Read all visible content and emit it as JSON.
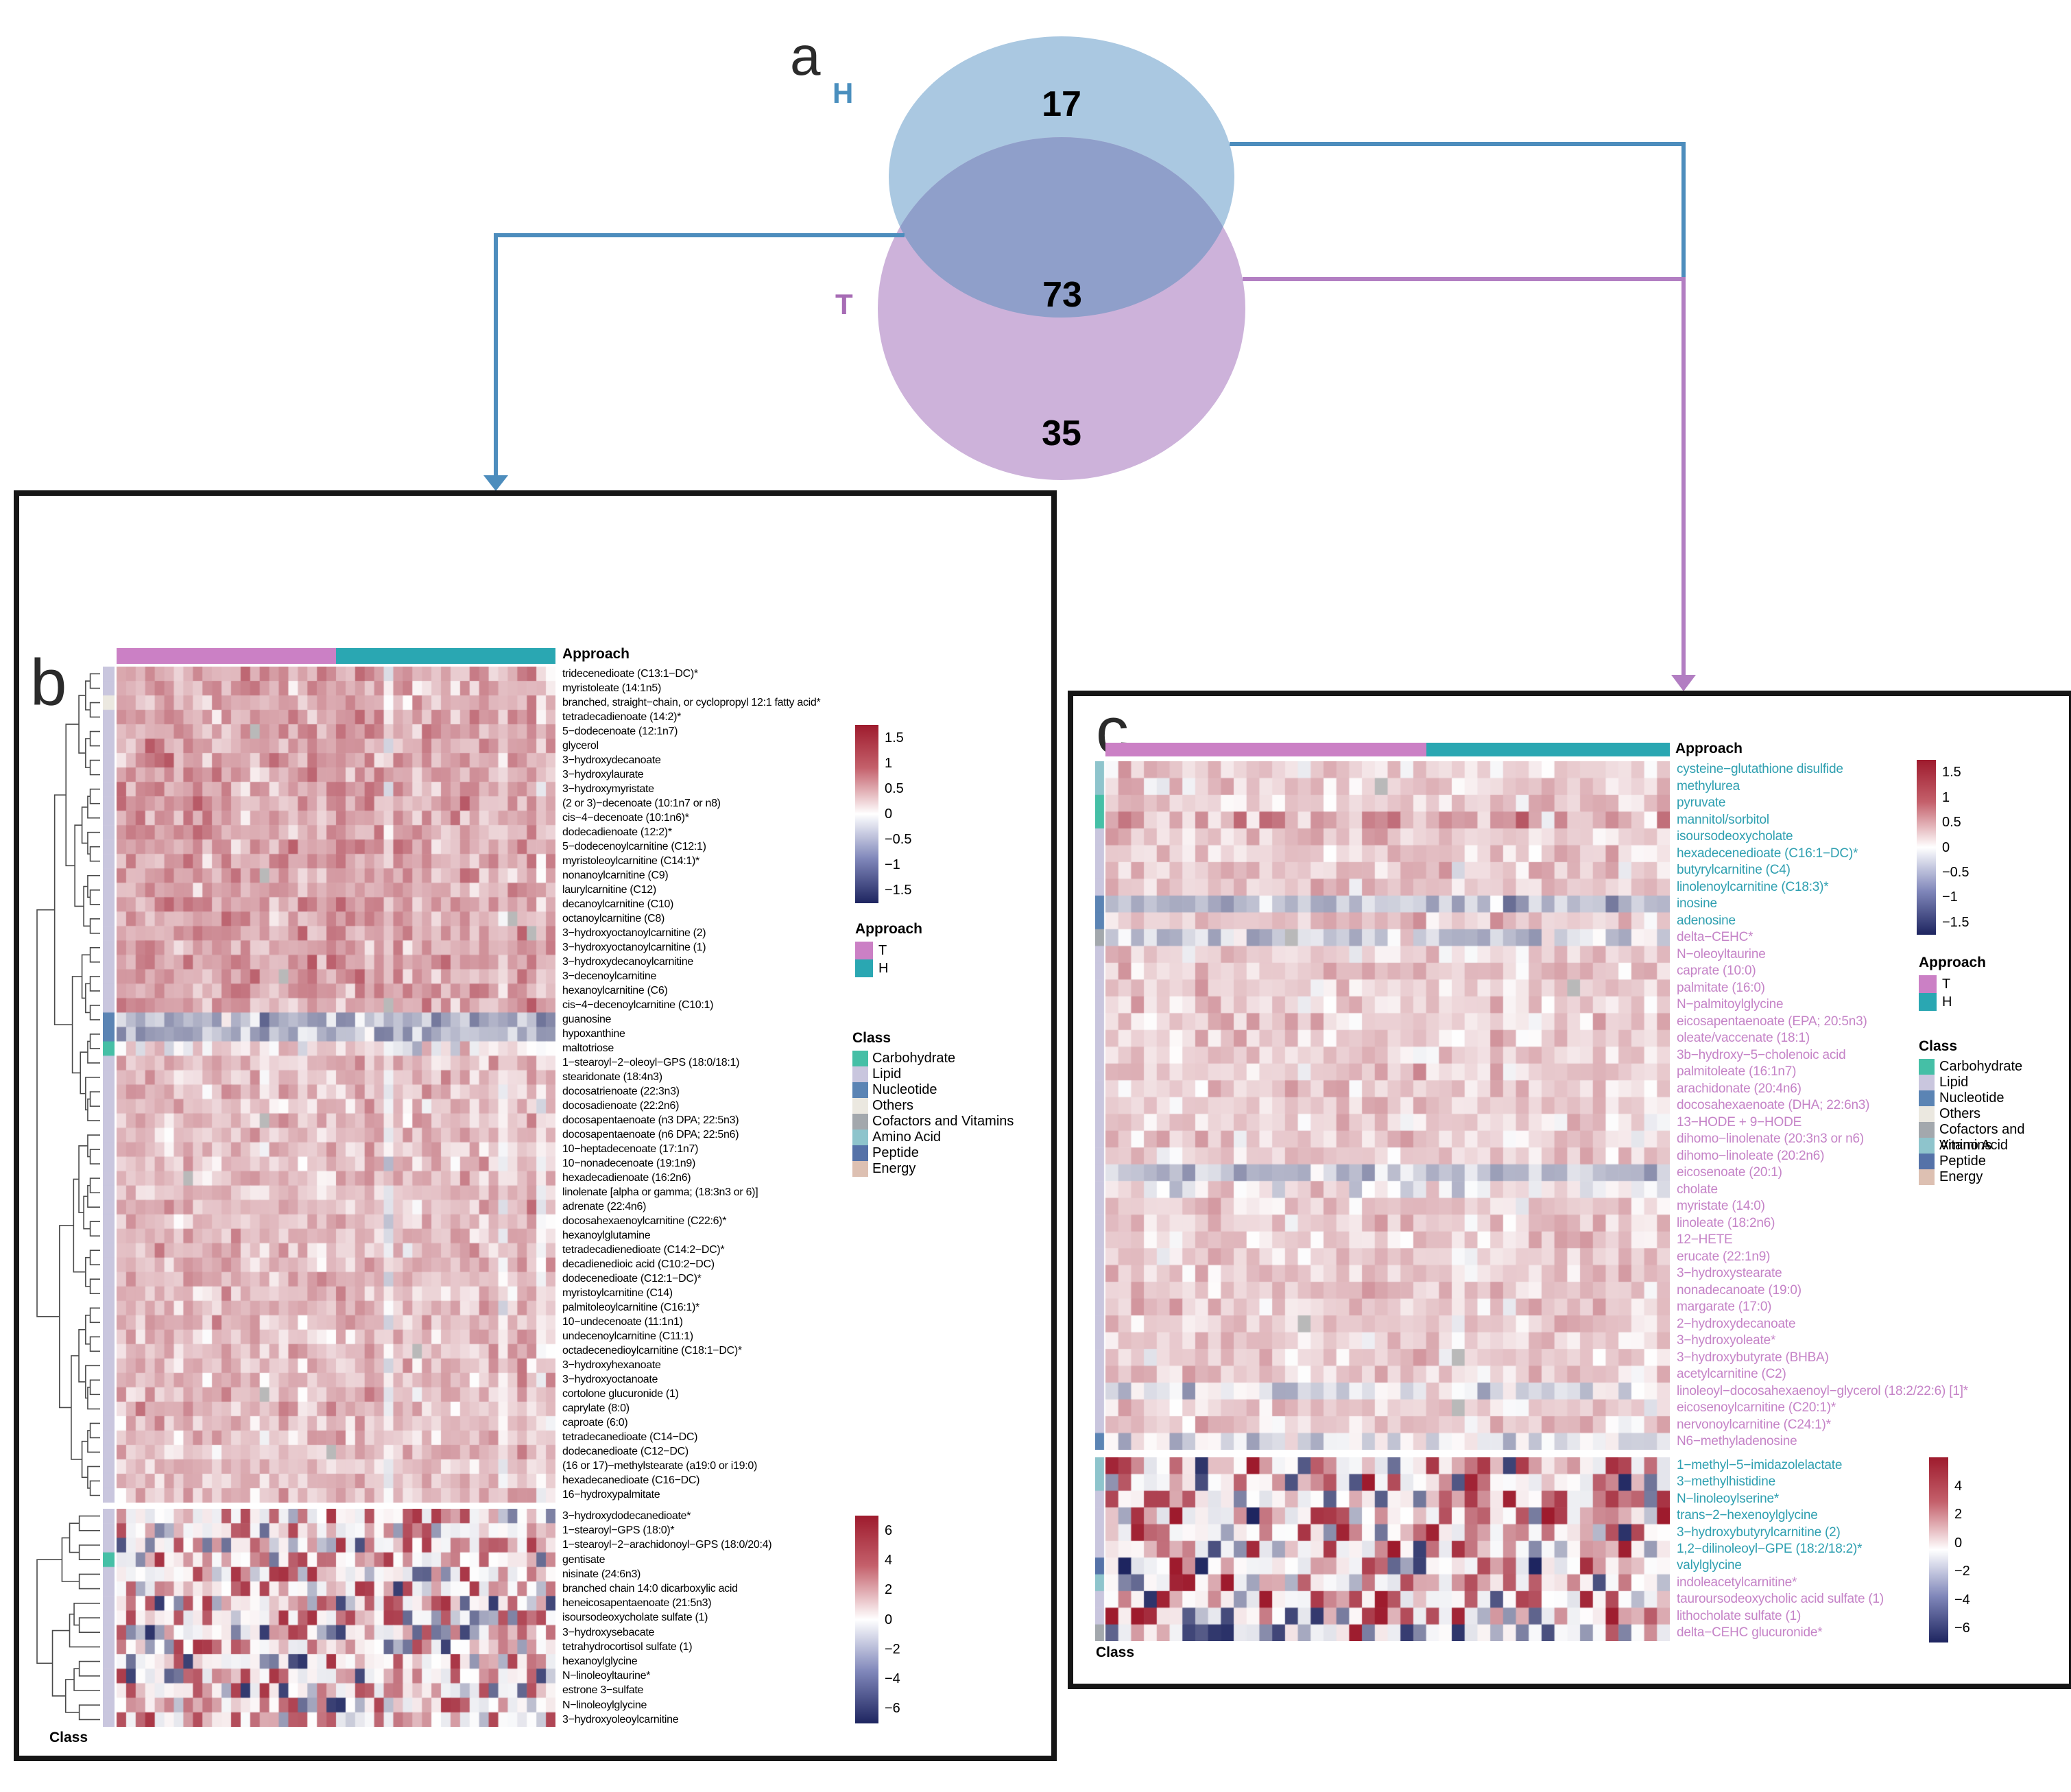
{
  "figure": {
    "panel_a_letter": "a",
    "panel_b_letter": "b",
    "panel_c_letter": "c"
  },
  "panels": {
    "b": {
      "approach_header": "Approach",
      "class_footer": "Class"
    },
    "c": {
      "approach_header": "Approach",
      "class_footer": "Class"
    }
  },
  "approach_legend": {
    "title": "Approach",
    "items": [
      {
        "label": "T",
        "color": "#cb80c5"
      },
      {
        "label": "H",
        "color": "#2aa7b2"
      }
    ]
  },
  "class_legend": {
    "title": "Class",
    "items": [
      {
        "key": "carbohydrate",
        "label": "Carbohydrate",
        "color": "#45bfa6"
      },
      {
        "key": "lipid",
        "label": "Lipid",
        "color": "#c9c6de"
      },
      {
        "key": "nucleotide",
        "label": "Nucleotide",
        "color": "#5b84b4"
      },
      {
        "key": "others",
        "label": "Others",
        "color": "#ebe8e0"
      },
      {
        "key": "cofactors",
        "label": "Cofactors and Vitamins",
        "color": "#a3a8ad"
      },
      {
        "key": "amino",
        "label": "Amino Acid",
        "color": "#8ec4cc"
      },
      {
        "key": "peptide",
        "label": "Peptide",
        "color": "#5572a8"
      },
      {
        "key": "energy",
        "label": "Energy",
        "color": "#ddc0b2"
      }
    ]
  },
  "colors": {
    "venn_h_fill": "#aac8e1",
    "venn_t_fill": "#cdb2da",
    "venn_overlap_fill": "#8f9fca",
    "line_blue": "#4d8dbd",
    "line_purple": "#b27ec2",
    "label_h_teal": "#2e9fb0",
    "label_t_pink": "#c583c7",
    "heat_pos": "#9e1b2d",
    "heat_neg": "#1e2560",
    "heat_na": "#b9b9b9"
  },
  "chart_data": [
    {
      "type": "venn",
      "h_label": "H",
      "t_label": "T",
      "h_only": "17",
      "shared": "73",
      "t_only": "35"
    },
    {
      "type": "heatmap",
      "panel": "b",
      "description": "73 metabolites shared by both approaches; rows clustered, columns split T then H",
      "col_groups": [
        {
          "name": "T",
          "n": 23
        },
        {
          "name": "H",
          "n": 23
        }
      ],
      "colorbar_top": {
        "ticks": [
          {
            "v": 1.5,
            "label": "1.5"
          },
          {
            "v": 1,
            "label": "1"
          },
          {
            "v": 0.5,
            "label": "0.5"
          },
          {
            "v": 0,
            "label": "0"
          },
          {
            "v": -0.5,
            "label": "−0.5"
          },
          {
            "v": -1,
            "label": "−1"
          },
          {
            "v": -1.5,
            "label": "−1.5"
          }
        ],
        "max": 1.75,
        "min": -1.75
      },
      "colorbar_bottom": {
        "ticks": [
          {
            "v": 6,
            "label": "6"
          },
          {
            "v": 4,
            "label": "4"
          },
          {
            "v": 2,
            "label": "2"
          },
          {
            "v": 0,
            "label": "0"
          },
          {
            "v": -2,
            "label": "−2"
          },
          {
            "v": -4,
            "label": "−4"
          },
          {
            "v": -6,
            "label": "−6"
          }
        ],
        "max": 7,
        "min": -7
      },
      "rows_block1": [
        {
          "label": "tridecenedioate (C13:1−DC)*",
          "class": "lipid"
        },
        {
          "label": "myristoleate (14:1n5)",
          "class": "lipid"
        },
        {
          "label": "branched, straight−chain, or cyclopropyl 12:1 fatty acid*",
          "class": "others"
        },
        {
          "label": "tetradecadienoate (14:2)*",
          "class": "lipid"
        },
        {
          "label": "5−dodecenoate (12:1n7)",
          "class": "lipid"
        },
        {
          "label": "glycerol",
          "class": "lipid"
        },
        {
          "label": "3−hydroxydecanoate",
          "class": "lipid"
        },
        {
          "label": "3−hydroxylaurate",
          "class": "lipid"
        },
        {
          "label": "3−hydroxymyristate",
          "class": "lipid"
        },
        {
          "label": "(2 or 3)−decenoate (10:1n7 or n8)",
          "class": "lipid"
        },
        {
          "label": "cis−4−decenoate (10:1n6)*",
          "class": "lipid"
        },
        {
          "label": "dodecadienoate (12:2)*",
          "class": "lipid"
        },
        {
          "label": "5−dodecenoylcarnitine (C12:1)",
          "class": "lipid"
        },
        {
          "label": "myristoleoylcarnitine (C14:1)*",
          "class": "lipid"
        },
        {
          "label": "nonanoylcarnitine (C9)",
          "class": "lipid"
        },
        {
          "label": "laurylcarnitine (C12)",
          "class": "lipid"
        },
        {
          "label": "decanoylcarnitine (C10)",
          "class": "lipid"
        },
        {
          "label": "octanoylcarnitine (C8)",
          "class": "lipid"
        },
        {
          "label": "3−hydroxyoctanoylcarnitine (2)",
          "class": "lipid"
        },
        {
          "label": "3−hydroxyoctanoylcarnitine (1)",
          "class": "lipid"
        },
        {
          "label": "3−hydroxydecanoylcarnitine",
          "class": "lipid"
        },
        {
          "label": "3−decenoylcarnitine",
          "class": "lipid"
        },
        {
          "label": "hexanoylcarnitine (C6)",
          "class": "lipid"
        },
        {
          "label": "cis−4−decenoylcarnitine (C10:1)",
          "class": "lipid"
        },
        {
          "label": "guanosine",
          "class": "nucleotide"
        },
        {
          "label": "hypoxanthine",
          "class": "nucleotide"
        },
        {
          "label": "maltotriose",
          "class": "carbohydrate"
        },
        {
          "label": "1−stearoyl−2−oleoyl−GPS (18:0/18:1)",
          "class": "lipid"
        },
        {
          "label": "stearidonate (18:4n3)",
          "class": "lipid"
        },
        {
          "label": "docosatrienoate (22:3n3)",
          "class": "lipid"
        },
        {
          "label": "docosadienoate (22:2n6)",
          "class": "lipid"
        },
        {
          "label": "docosapentaenoate (n3 DPA; 22:5n3)",
          "class": "lipid"
        },
        {
          "label": "docosapentaenoate (n6 DPA; 22:5n6)",
          "class": "lipid"
        },
        {
          "label": "10−heptadecenoate (17:1n7)",
          "class": "lipid"
        },
        {
          "label": "10−nonadecenoate (19:1n9)",
          "class": "lipid"
        },
        {
          "label": "hexadecadienoate (16:2n6)",
          "class": "lipid"
        },
        {
          "label": "linolenate [alpha or gamma; (18:3n3 or 6)]",
          "class": "lipid"
        },
        {
          "label": "adrenate (22:4n6)",
          "class": "lipid"
        },
        {
          "label": "docosahexaenoylcarnitine (C22:6)*",
          "class": "lipid"
        },
        {
          "label": "hexanoylglutamine",
          "class": "lipid"
        },
        {
          "label": "tetradecadienedioate (C14:2−DC)*",
          "class": "lipid"
        },
        {
          "label": "decadienedioic acid (C10:2−DC)",
          "class": "lipid"
        },
        {
          "label": "dodecenedioate (C12:1−DC)*",
          "class": "lipid"
        },
        {
          "label": "myristoylcarnitine (C14)",
          "class": "lipid"
        },
        {
          "label": "palmitoleoylcarnitine (C16:1)*",
          "class": "lipid"
        },
        {
          "label": "10−undecenoate (11:1n1)",
          "class": "lipid"
        },
        {
          "label": "undecenoylcarnitine (C11:1)",
          "class": "lipid"
        },
        {
          "label": "octadecenedioylcarnitine (C18:1−DC)*",
          "class": "lipid"
        },
        {
          "label": "3−hydroxyhexanoate",
          "class": "lipid"
        },
        {
          "label": "3−hydroxyoctanoate",
          "class": "lipid"
        },
        {
          "label": "cortolone glucuronide (1)",
          "class": "lipid"
        },
        {
          "label": "caprylate (8:0)",
          "class": "lipid"
        },
        {
          "label": "caproate (6:0)",
          "class": "lipid"
        },
        {
          "label": "tetradecanedioate (C14−DC)",
          "class": "lipid"
        },
        {
          "label": "dodecanedioate (C12−DC)",
          "class": "lipid"
        },
        {
          "label": "(16 or 17)−methylstearate (a19:0 or i19:0)",
          "class": "lipid"
        },
        {
          "label": "hexadecanedioate (C16−DC)",
          "class": "lipid"
        },
        {
          "label": "16−hydroxypalmitate",
          "class": "lipid"
        }
      ],
      "rows_block2": [
        {
          "label": "3−hydroxydodecanedioate*",
          "class": "lipid"
        },
        {
          "label": "1−stearoyl−GPS (18:0)*",
          "class": "lipid"
        },
        {
          "label": "1−stearoyl−2−arachidonoyl−GPS (18:0/20:4)",
          "class": "lipid"
        },
        {
          "label": "gentisate",
          "class": "carbohydrate"
        },
        {
          "label": "nisinate (24:6n3)",
          "class": "lipid"
        },
        {
          "label": "branched chain 14:0 dicarboxylic acid",
          "class": "lipid"
        },
        {
          "label": "heneicosapentaenoate (21:5n3)",
          "class": "lipid"
        },
        {
          "label": "isoursodeoxycholate sulfate (1)",
          "class": "lipid"
        },
        {
          "label": "3−hydroxysebacate",
          "class": "lipid"
        },
        {
          "label": "tetrahydrocortisol sulfate (1)",
          "class": "lipid"
        },
        {
          "label": "hexanoylglycine",
          "class": "lipid"
        },
        {
          "label": "N−linoleoyltaurine*",
          "class": "lipid"
        },
        {
          "label": "estrone 3−sulfate",
          "class": "lipid"
        },
        {
          "label": "N−linoleoylglycine",
          "class": "lipid"
        },
        {
          "label": "3−hydroxyoleoylcarnitine",
          "class": "lipid"
        }
      ]
    },
    {
      "type": "heatmap",
      "panel": "c",
      "description": "52 approach-unique metabolites; label color = approach that detected them (teal H, pink T)",
      "col_groups": [
        {
          "name": "T",
          "n": 25
        },
        {
          "name": "H",
          "n": 19
        }
      ],
      "colorbar_top": {
        "ticks": [
          {
            "v": 1.5,
            "label": "1.5"
          },
          {
            "v": 1,
            "label": "1"
          },
          {
            "v": 0.5,
            "label": "0.5"
          },
          {
            "v": 0,
            "label": "0"
          },
          {
            "v": -0.5,
            "label": "−0.5"
          },
          {
            "v": -1,
            "label": "−1"
          },
          {
            "v": -1.5,
            "label": "−1.5"
          }
        ],
        "max": 1.75,
        "min": -1.75
      },
      "colorbar_bottom": {
        "ticks": [
          {
            "v": 4,
            "label": "4"
          },
          {
            "v": 2,
            "label": "2"
          },
          {
            "v": 0,
            "label": "0"
          },
          {
            "v": -2,
            "label": "−2"
          },
          {
            "v": -4,
            "label": "−4"
          },
          {
            "v": -6,
            "label": "−6"
          }
        ],
        "max": 6,
        "min": -7
      },
      "rows_block1": [
        {
          "label": "cysteine−glutathione disulfide",
          "class": "amino",
          "approach": "H"
        },
        {
          "label": "methylurea",
          "class": "amino",
          "approach": "H"
        },
        {
          "label": "pyruvate",
          "class": "carbohydrate",
          "approach": "H"
        },
        {
          "label": "mannitol/sorbitol",
          "class": "carbohydrate",
          "approach": "H"
        },
        {
          "label": "isoursodeoxycholate",
          "class": "lipid",
          "approach": "H"
        },
        {
          "label": "hexadecenedioate (C16:1−DC)*",
          "class": "lipid",
          "approach": "H"
        },
        {
          "label": "butyrylcarnitine (C4)",
          "class": "lipid",
          "approach": "H"
        },
        {
          "label": "linolenoylcarnitine (C18:3)*",
          "class": "lipid",
          "approach": "H"
        },
        {
          "label": "inosine",
          "class": "nucleotide",
          "approach": "H"
        },
        {
          "label": "adenosine",
          "class": "nucleotide",
          "approach": "H"
        },
        {
          "label": "delta−CEHC*",
          "class": "cofactors",
          "approach": "T"
        },
        {
          "label": "N−oleoyltaurine",
          "class": "lipid",
          "approach": "T"
        },
        {
          "label": "caprate (10:0)",
          "class": "lipid",
          "approach": "T"
        },
        {
          "label": "palmitate (16:0)",
          "class": "lipid",
          "approach": "T"
        },
        {
          "label": "N−palmitoylglycine",
          "class": "lipid",
          "approach": "T"
        },
        {
          "label": "eicosapentaenoate (EPA; 20:5n3)",
          "class": "lipid",
          "approach": "T"
        },
        {
          "label": "oleate/vaccenate (18:1)",
          "class": "lipid",
          "approach": "T"
        },
        {
          "label": "3b−hydroxy−5−cholenoic acid",
          "class": "lipid",
          "approach": "T"
        },
        {
          "label": "palmitoleate (16:1n7)",
          "class": "lipid",
          "approach": "T"
        },
        {
          "label": "arachidonate (20:4n6)",
          "class": "lipid",
          "approach": "T"
        },
        {
          "label": "docosahexaenoate (DHA; 22:6n3)",
          "class": "lipid",
          "approach": "T"
        },
        {
          "label": "13−HODE + 9−HODE",
          "class": "lipid",
          "approach": "T"
        },
        {
          "label": "dihomo−linolenate (20:3n3 or n6)",
          "class": "lipid",
          "approach": "T"
        },
        {
          "label": "dihomo−linoleate (20:2n6)",
          "class": "lipid",
          "approach": "T"
        },
        {
          "label": "eicosenoate (20:1)",
          "class": "lipid",
          "approach": "T"
        },
        {
          "label": "cholate",
          "class": "lipid",
          "approach": "T"
        },
        {
          "label": "myristate (14:0)",
          "class": "lipid",
          "approach": "T"
        },
        {
          "label": "linoleate (18:2n6)",
          "class": "lipid",
          "approach": "T"
        },
        {
          "label": "12−HETE",
          "class": "lipid",
          "approach": "T"
        },
        {
          "label": "erucate (22:1n9)",
          "class": "lipid",
          "approach": "T"
        },
        {
          "label": "3−hydroxystearate",
          "class": "lipid",
          "approach": "T"
        },
        {
          "label": "nonadecanoate (19:0)",
          "class": "lipid",
          "approach": "T"
        },
        {
          "label": "margarate (17:0)",
          "class": "lipid",
          "approach": "T"
        },
        {
          "label": "2−hydroxydecanoate",
          "class": "lipid",
          "approach": "T"
        },
        {
          "label": "3−hydroxyoleate*",
          "class": "lipid",
          "approach": "T"
        },
        {
          "label": "3−hydroxybutyrate (BHBA)",
          "class": "lipid",
          "approach": "T"
        },
        {
          "label": "acetylcarnitine (C2)",
          "class": "lipid",
          "approach": "T"
        },
        {
          "label": "linoleoyl−docosahexaenoyl−glycerol (18:2/22:6) [1]*",
          "class": "lipid",
          "approach": "T"
        },
        {
          "label": "eicosenoylcarnitine (C20:1)*",
          "class": "lipid",
          "approach": "T"
        },
        {
          "label": "nervonoylcarnitine (C24:1)*",
          "class": "lipid",
          "approach": "T"
        },
        {
          "label": "N6−methyladenosine",
          "class": "nucleotide",
          "approach": "T"
        }
      ],
      "rows_block2": [
        {
          "label": "1−methyl−5−imidazolelactate",
          "class": "amino",
          "approach": "H"
        },
        {
          "label": "3−methylhistidine",
          "class": "amino",
          "approach": "H"
        },
        {
          "label": "N−linoleoylserine*",
          "class": "lipid",
          "approach": "H"
        },
        {
          "label": "trans−2−hexenoylglycine",
          "class": "lipid",
          "approach": "H"
        },
        {
          "label": "3−hydroxybutyrylcarnitine (2)",
          "class": "lipid",
          "approach": "H"
        },
        {
          "label": "1,2−dilinoleoyl−GPE (18:2/18:2)*",
          "class": "lipid",
          "approach": "H"
        },
        {
          "label": "valylglycine",
          "class": "peptide",
          "approach": "H"
        },
        {
          "label": "indoleacetylcarnitine*",
          "class": "amino",
          "approach": "T"
        },
        {
          "label": "tauroursodeoxycholic acid sulfate (1)",
          "class": "lipid",
          "approach": "T"
        },
        {
          "label": "lithocholate sulfate (1)",
          "class": "lipid",
          "approach": "T"
        },
        {
          "label": "delta−CEHC glucuronide*",
          "class": "cofactors",
          "approach": "T"
        }
      ]
    }
  ]
}
